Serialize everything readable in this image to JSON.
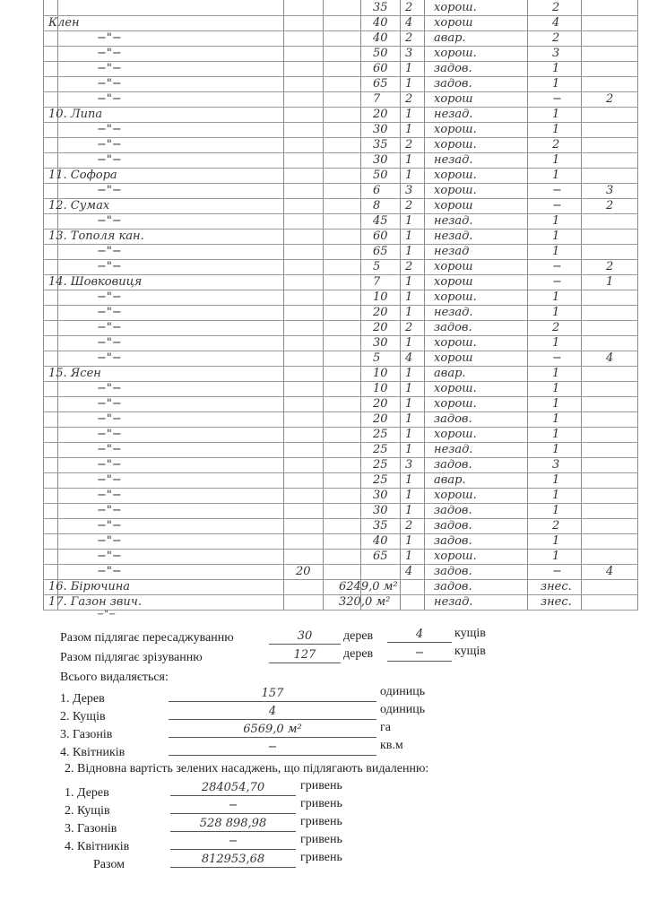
{
  "table": {
    "rows": [
      {
        "name": "",
        "age": "35",
        "count": "2",
        "condition": "хорош.",
        "trees": "2",
        "shrubs": ""
      },
      {
        "name": "Клен",
        "age": "40",
        "count": "4",
        "condition": "хорош",
        "trees": "4",
        "shrubs": ""
      },
      {
        "name": "−\"−",
        "age": "40",
        "count": "2",
        "condition": "авар.",
        "trees": "2",
        "shrubs": ""
      },
      {
        "name": "−\"−",
        "age": "50",
        "count": "3",
        "condition": "хорош.",
        "trees": "3",
        "shrubs": ""
      },
      {
        "name": "−\"−",
        "age": "60",
        "count": "1",
        "condition": "задов.",
        "trees": "1",
        "shrubs": ""
      },
      {
        "name": "−\"−",
        "age": "65",
        "count": "1",
        "condition": "задов.",
        "trees": "1",
        "shrubs": ""
      },
      {
        "name": "−\"−",
        "age": "7",
        "count": "2",
        "condition": "хорош",
        "trees": "−",
        "shrubs": "2"
      },
      {
        "name": "10. Липа",
        "age": "20",
        "count": "1",
        "condition": "незад.",
        "trees": "1",
        "shrubs": ""
      },
      {
        "name": "−\"−",
        "age": "30",
        "count": "1",
        "condition": "хорош.",
        "trees": "1",
        "shrubs": ""
      },
      {
        "name": "−\"−",
        "age": "35",
        "count": "2",
        "condition": "хорош.",
        "trees": "2",
        "shrubs": ""
      },
      {
        "name": "−\"−",
        "age": "30",
        "count": "1",
        "condition": "незад.",
        "trees": "1",
        "shrubs": ""
      },
      {
        "name": "11. Софора",
        "age": "50",
        "count": "1",
        "condition": "хорош.",
        "trees": "1",
        "shrubs": ""
      },
      {
        "name": "−\"−",
        "age": "6",
        "count": "3",
        "condition": "хорош.",
        "trees": "−",
        "shrubs": "3"
      },
      {
        "name": "12. Сумах",
        "age": "8",
        "count": "2",
        "condition": "хорош",
        "trees": "−",
        "shrubs": "2"
      },
      {
        "name": "−\"−",
        "age": "45",
        "count": "1",
        "condition": "незад.",
        "trees": "1",
        "shrubs": ""
      },
      {
        "name": "13. Тополя кан.",
        "age": "60",
        "count": "1",
        "condition": "незад.",
        "trees": "1",
        "shrubs": ""
      },
      {
        "name": "−\"−",
        "age": "65",
        "count": "1",
        "condition": "незад",
        "trees": "1",
        "shrubs": ""
      },
      {
        "name": "−\"−",
        "age": "5",
        "count": "2",
        "condition": "хорош",
        "trees": "−",
        "shrubs": "2"
      },
      {
        "name": "14. Шовковиця",
        "age": "7",
        "count": "1",
        "condition": "хорош",
        "trees": "−",
        "shrubs": "1"
      },
      {
        "name": "−\"−",
        "age": "10",
        "count": "1",
        "condition": "хорош.",
        "trees": "1",
        "shrubs": ""
      },
      {
        "name": "−\"−",
        "age": "20",
        "count": "1",
        "condition": "незад.",
        "trees": "1",
        "shrubs": ""
      },
      {
        "name": "−\"−",
        "age": "20",
        "count": "2",
        "condition": "задов.",
        "trees": "2",
        "shrubs": ""
      },
      {
        "name": "−\"−",
        "age": "30",
        "count": "1",
        "condition": "хорош.",
        "trees": "1",
        "shrubs": ""
      },
      {
        "name": "−\"−",
        "age": "5",
        "count": "4",
        "condition": "хорош",
        "trees": "−",
        "shrubs": "4"
      },
      {
        "name": "15. Ясен",
        "age": "10",
        "count": "1",
        "condition": "авар.",
        "trees": "1",
        "shrubs": ""
      },
      {
        "name": "−\"−",
        "age": "10",
        "count": "1",
        "condition": "хорош.",
        "trees": "1",
        "shrubs": ""
      },
      {
        "name": "−\"−",
        "age": "20",
        "count": "1",
        "condition": "хорош.",
        "trees": "1",
        "shrubs": ""
      },
      {
        "name": "−\"−",
        "age": "20",
        "count": "1",
        "condition": "задов.",
        "trees": "1",
        "shrubs": ""
      },
      {
        "name": "−\"−",
        "age": "25",
        "count": "1",
        "condition": "хорош.",
        "trees": "1",
        "shrubs": ""
      },
      {
        "name": "−\"−",
        "age": "25",
        "count": "1",
        "condition": "незад.",
        "trees": "1",
        "shrubs": ""
      },
      {
        "name": "−\"−",
        "age": "25",
        "count": "3",
        "condition": "задов.",
        "trees": "3",
        "shrubs": ""
      },
      {
        "name": "−\"−",
        "age": "25",
        "count": "1",
        "condition": "авар.",
        "trees": "1",
        "shrubs": ""
      },
      {
        "name": "−\"−",
        "age": "30",
        "count": "1",
        "condition": "хорош.",
        "trees": "1",
        "shrubs": ""
      },
      {
        "name": "−\"−",
        "age": "30",
        "count": "1",
        "condition": "задов.",
        "trees": "1",
        "shrubs": ""
      },
      {
        "name": "−\"−",
        "age": "35",
        "count": "2",
        "condition": "задов.",
        "trees": "2",
        "shrubs": ""
      },
      {
        "name": "−\"−",
        "age": "40",
        "count": "1",
        "condition": "задов.",
        "trees": "1",
        "shrubs": ""
      },
      {
        "name": "−\"−",
        "age": "65",
        "count": "1",
        "condition": "хорош.",
        "trees": "1",
        "shrubs": ""
      },
      {
        "name": "−\"−",
        "height": "20",
        "age": "",
        "count": "4",
        "condition": "задов.",
        "trees": "−",
        "shrubs": "4"
      },
      {
        "name": "16. Бірючина",
        "age": "6249,0 м²",
        "count": "",
        "condition": "задов.",
        "trees": "знес.",
        "shrubs": ""
      },
      {
        "name": "17. Газон звич.",
        "age": "320,0 м²",
        "count": "",
        "condition": "незад.",
        "trees": "знес.",
        "shrubs": ""
      }
    ],
    "trailing_mark": "−\"−"
  },
  "summary": {
    "transplant_label": "Разом підлягає пересаджуванню",
    "transplant_trees": "30",
    "transplant_shrubs": "4",
    "cut_label": "Разом підлягає зрізуванню",
    "cut_trees": "127",
    "cut_shrubs": "−",
    "trees_unit": "дерев",
    "shrubs_unit": "кущів",
    "removed_heading": "Всього видаляється:",
    "removed": [
      {
        "label": "1.  Дерев",
        "value": "157",
        "unit": "одиниць"
      },
      {
        "label": "2.  Кущів",
        "value": "4",
        "unit": "одиниць"
      },
      {
        "label": "3.  Газонів",
        "value": "6569,0 м²",
        "unit": "га"
      },
      {
        "label": "4.  Квітників",
        "value": "−",
        "unit": "кв.м"
      }
    ],
    "cost_heading": "2.  Відновна вартість зелених насаджень, що підлягають видаленню:",
    "costs": [
      {
        "label": "1.  Дерев",
        "value": "284054,70",
        "unit": "гривень"
      },
      {
        "label": "2.  Кущів",
        "value": "−",
        "unit": "гривень"
      },
      {
        "label": "3.  Газонів",
        "value": "528 898,98",
        "unit": "гривень"
      },
      {
        "label": "4.  Квітників",
        "value": "−",
        "unit": "гривень"
      },
      {
        "label": "Разом",
        "value": "812953,68",
        "unit": "гривень"
      }
    ]
  }
}
